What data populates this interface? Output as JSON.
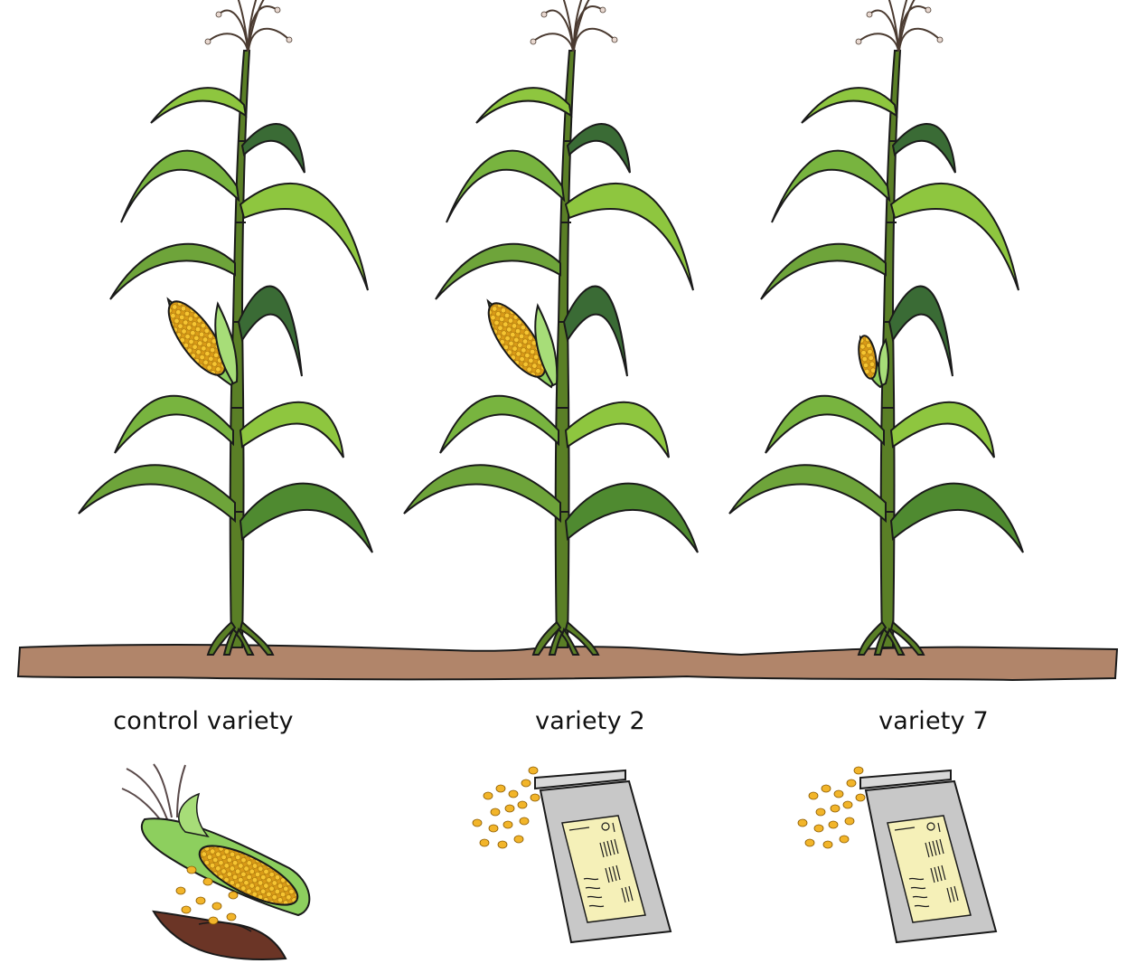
{
  "colors": {
    "leaf_light": "#8ec63f",
    "leaf_mid": "#5e9a2e",
    "leaf_dark": "#3a6b35",
    "stalk": "#5a7f26",
    "soil": "#b1856a",
    "kernel": "#f2b52a",
    "husk": "#8dcf5e",
    "packet": "#c8c8c8",
    "packet_label": "#f5f0b8",
    "hand": "#6b3526",
    "outline": "#1a1a1a"
  },
  "plants": [
    {
      "label": "control variety",
      "ear_size": "large",
      "seed_source": "hand-with-cob"
    },
    {
      "label": "variety 2",
      "ear_size": "large",
      "seed_source": "seed-packet"
    },
    {
      "label": "variety 7",
      "ear_size": "small",
      "seed_source": "seed-packet"
    }
  ]
}
